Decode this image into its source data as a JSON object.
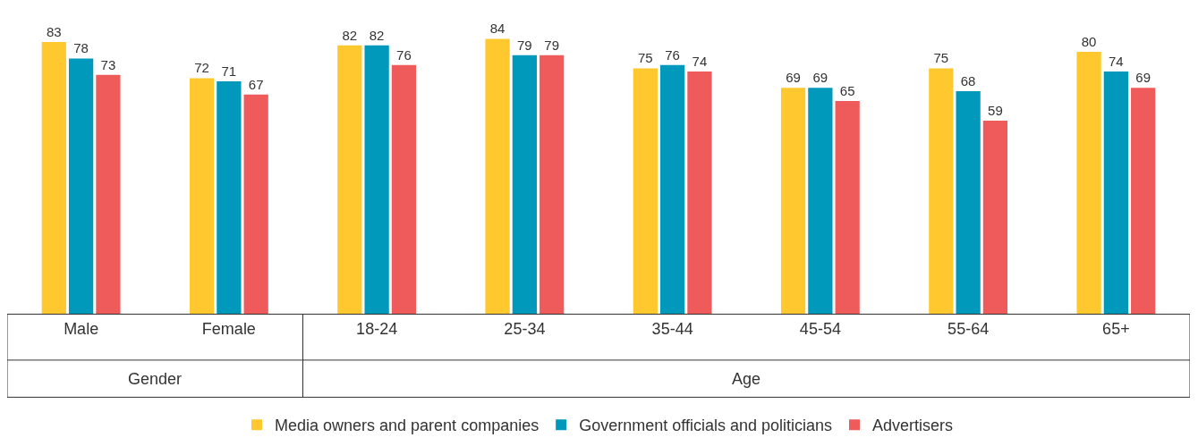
{
  "chart_data": {
    "type": "bar",
    "categories": [
      "Male",
      "Female",
      "18-24",
      "25-34",
      "35-44",
      "45-54",
      "55-64",
      "65+"
    ],
    "series": [
      {
        "name": "Media owners and parent companies",
        "color": "#ffc82e",
        "values": [
          83,
          72,
          82,
          84,
          75,
          69,
          75,
          80
        ]
      },
      {
        "name": "Government officials and politicians",
        "color": "#0099bc",
        "values": [
          78,
          71,
          82,
          79,
          76,
          69,
          68,
          74
        ]
      },
      {
        "name": "Advertisers",
        "color": "#ef5b5b",
        "values": [
          73,
          67,
          76,
          79,
          74,
          65,
          59,
          69
        ]
      }
    ],
    "annotations": [
      "Gender",
      "Age"
    ],
    "data_labels": true,
    "legend": "bottom"
  }
}
